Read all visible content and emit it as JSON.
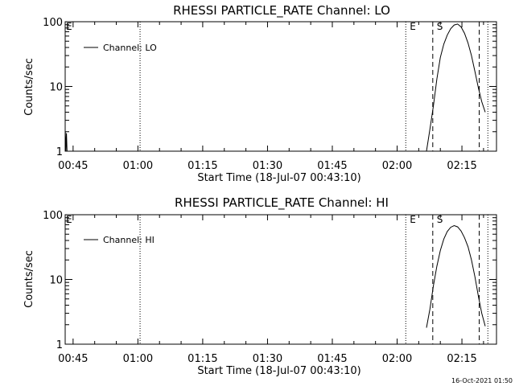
{
  "page": {
    "timestamp": "16-Oct-2021 01:50"
  },
  "chart_data": [
    {
      "type": "line",
      "title": "RHESSI PARTICLE_RATE Channel: LO",
      "xlabel": "Start Time (18-Jul-07 00:43:10)",
      "ylabel": "Counts/sec",
      "y_scale": "log",
      "xlim": [
        "00:43:10",
        "02:23:00"
      ],
      "ylim": [
        1,
        100
      ],
      "x_tick_labels": [
        "00:45",
        "01:00",
        "01:15",
        "01:30",
        "01:45",
        "02:00",
        "02:15"
      ],
      "y_tick_labels": [
        "1",
        "10",
        "100"
      ],
      "grid": false,
      "legend": {
        "entries": [
          "Channel: LO"
        ],
        "placement": "top-left"
      },
      "series": [
        {
          "name": "Channel: LO",
          "segments": [
            [
              [
                "00:43:12",
                2.0
              ],
              [
                "00:43:20",
                1.0
              ],
              [
                "00:43:28",
                1.9
              ],
              [
                "00:43:36",
                1.0
              ]
            ],
            [
              [
                "02:06:48",
                1.0
              ],
              [
                "02:07:36",
                2.2
              ],
              [
                "02:08:24",
                5.0
              ],
              [
                "02:09:12",
                13.0
              ],
              [
                "02:10:00",
                28.0
              ],
              [
                "02:10:48",
                45.0
              ],
              [
                "02:11:36",
                62.0
              ],
              [
                "02:12:24",
                78.0
              ],
              [
                "02:13:12",
                89.0
              ],
              [
                "02:14:00",
                92.0
              ],
              [
                "02:14:48",
                83.0
              ],
              [
                "02:15:36",
                66.0
              ],
              [
                "02:16:24",
                47.0
              ],
              [
                "02:17:12",
                30.0
              ],
              [
                "02:18:00",
                17.0
              ],
              [
                "02:18:48",
                9.5
              ],
              [
                "02:19:36",
                5.8
              ],
              [
                "02:20:24",
                4.0
              ]
            ]
          ]
        }
      ],
      "markers": [
        {
          "time": "01:00:30",
          "style": "dotted",
          "label": ""
        },
        {
          "time": "02:02:00",
          "style": "dotted",
          "label": "E"
        },
        {
          "time": "02:08:15",
          "style": "dashed",
          "label": "S"
        },
        {
          "time": "02:19:00",
          "style": "dashed",
          "label": ""
        },
        {
          "time": "02:21:00",
          "style": "dotted",
          "label": ""
        }
      ],
      "edge_label": "E"
    },
    {
      "type": "line",
      "title": "RHESSI PARTICLE_RATE Channel: HI",
      "xlabel": "Start Time (18-Jul-07 00:43:10)",
      "ylabel": "Counts/sec",
      "y_scale": "log",
      "xlim": [
        "00:43:10",
        "02:23:00"
      ],
      "ylim": [
        1,
        100
      ],
      "x_tick_labels": [
        "00:45",
        "01:00",
        "01:15",
        "01:30",
        "01:45",
        "02:00",
        "02:15"
      ],
      "y_tick_labels": [
        "1",
        "10",
        "100"
      ],
      "grid": false,
      "legend": {
        "entries": [
          "Channel: HI"
        ],
        "placement": "top-left"
      },
      "series": [
        {
          "name": "Channel: HI",
          "segments": [
            [
              [
                "02:06:48",
                1.8
              ],
              [
                "02:07:36",
                3.5
              ],
              [
                "02:08:24",
                8.0
              ],
              [
                "02:09:12",
                16.0
              ],
              [
                "02:10:00",
                28.0
              ],
              [
                "02:10:48",
                42.0
              ],
              [
                "02:11:36",
                55.0
              ],
              [
                "02:12:24",
                64.0
              ],
              [
                "02:13:12",
                68.0
              ],
              [
                "02:14:00",
                65.0
              ],
              [
                "02:14:48",
                56.0
              ],
              [
                "02:15:36",
                44.0
              ],
              [
                "02:16:24",
                32.0
              ],
              [
                "02:17:12",
                20.0
              ],
              [
                "02:18:00",
                11.0
              ],
              [
                "02:18:48",
                5.5
              ],
              [
                "02:19:36",
                3.0
              ],
              [
                "02:20:24",
                1.9
              ]
            ]
          ]
        }
      ],
      "markers": [
        {
          "time": "01:00:30",
          "style": "dotted",
          "label": ""
        },
        {
          "time": "02:02:00",
          "style": "dotted",
          "label": "E"
        },
        {
          "time": "02:08:15",
          "style": "dashed",
          "label": "S"
        },
        {
          "time": "02:19:00",
          "style": "dashed",
          "label": ""
        },
        {
          "time": "02:21:00",
          "style": "dotted",
          "label": ""
        }
      ],
      "edge_label": "E"
    }
  ]
}
